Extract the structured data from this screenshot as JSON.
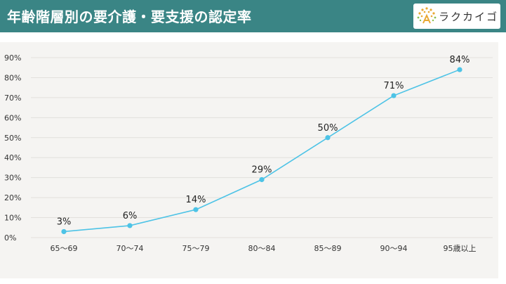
{
  "header": {
    "title": "年齢階層別の要介護・要支援の認定率",
    "brand": "ラクカイゴ",
    "background_color": "#3a8585"
  },
  "chart_data": {
    "type": "line",
    "title": "年齢階層別の要介護・要支援の認定率",
    "categories": [
      "65〜69",
      "70〜74",
      "75〜79",
      "80〜84",
      "85〜89",
      "90〜94",
      "95歳以上"
    ],
    "series": [
      {
        "values": [
          3,
          6,
          14,
          29,
          50,
          71,
          84
        ],
        "labels": [
          "3%",
          "6%",
          "14%",
          "29%",
          "50%",
          "71%",
          "84%"
        ],
        "color": "#4dc3e6"
      }
    ],
    "y_ticks": [
      "0%",
      "10%",
      "20%",
      "30%",
      "40%",
      "50%",
      "60%",
      "70%",
      "80%",
      "90%"
    ],
    "ylim": [
      0,
      90
    ],
    "xlabel": "",
    "ylabel": "",
    "grid": true,
    "legend": "none"
  }
}
